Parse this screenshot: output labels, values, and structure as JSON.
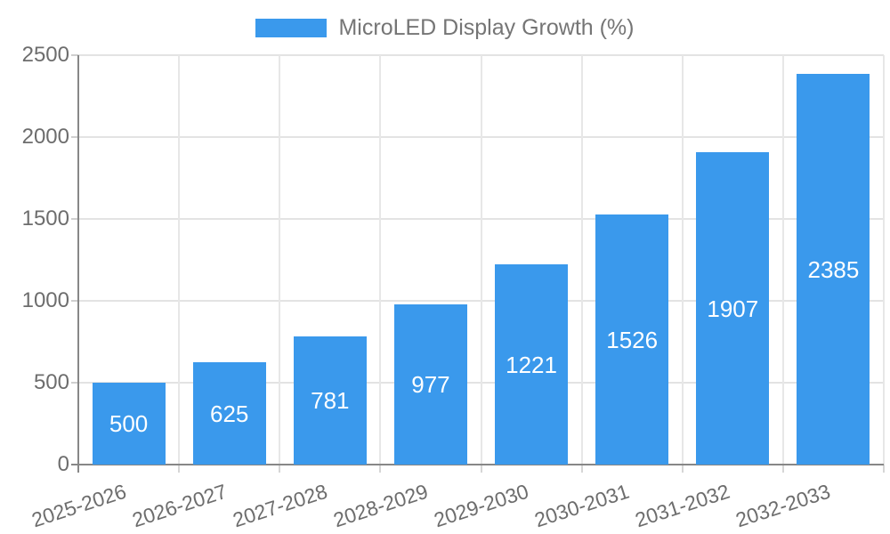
{
  "legend": {
    "label": "MicroLED Display Growth (%)"
  },
  "colors": {
    "bar": "#3a99ec",
    "bar_label": "#ffffff",
    "legend_text": "#757575",
    "axis_text": "#6d6d6d"
  },
  "chart_data": {
    "type": "bar",
    "title": "MicroLED Display Growth (%)",
    "categories": [
      "2025-2026",
      "2026-2027",
      "2027-2028",
      "2028-2029",
      "2029-2030",
      "2030-2031",
      "2031-2032",
      "2032-2033"
    ],
    "values": [
      500,
      625,
      781,
      977,
      1221,
      1526,
      1907,
      2385
    ],
    "bar_labels": [
      500,
      625,
      781,
      977,
      1221,
      1526,
      1907,
      2385
    ],
    "xlabel": "",
    "ylabel": "",
    "ylim": [
      0,
      2500
    ],
    "yticks": [
      0,
      500,
      1000,
      1500,
      2000,
      2500
    ],
    "grid": true,
    "legend_position": "top",
    "bar_label_position": "center-inside",
    "xtick_rotation_deg": -18
  }
}
